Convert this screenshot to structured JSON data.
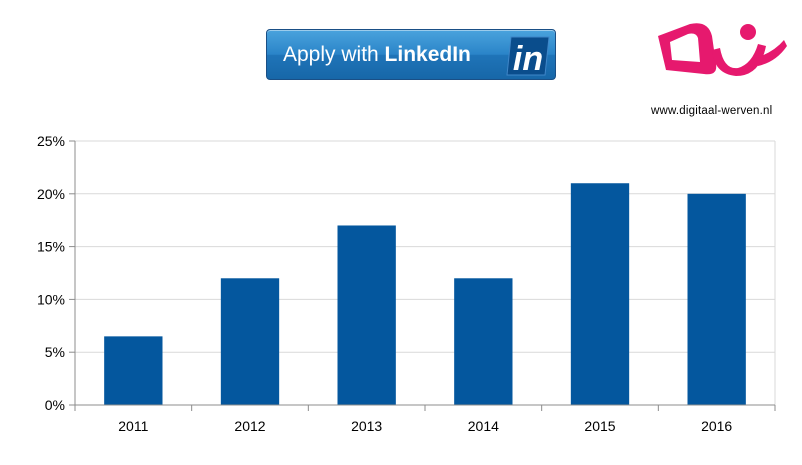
{
  "button": {
    "label_prefix": "Apply with ",
    "label_brand": "LinkedIn",
    "logo_text": "in"
  },
  "brand": {
    "logo_name": "digitaal-werven-logo",
    "logo_color": "#e6196e",
    "url": "www.digitaal-werven.nl"
  },
  "colors": {
    "bar": "#04579e",
    "grid": "#d9d9d9",
    "axis": "#8c8c8c"
  },
  "chart_data": {
    "type": "bar",
    "categories": [
      "2011",
      "2012",
      "2013",
      "2014",
      "2015",
      "2016"
    ],
    "values": [
      6.5,
      12,
      17,
      12,
      21,
      20
    ],
    "yticks": [
      "0%",
      "5%",
      "10%",
      "15%",
      "20%",
      "25%"
    ],
    "ylim": [
      0,
      25
    ],
    "title": "",
    "xlabel": "",
    "ylabel": "",
    "grid": true,
    "legend": "none"
  }
}
